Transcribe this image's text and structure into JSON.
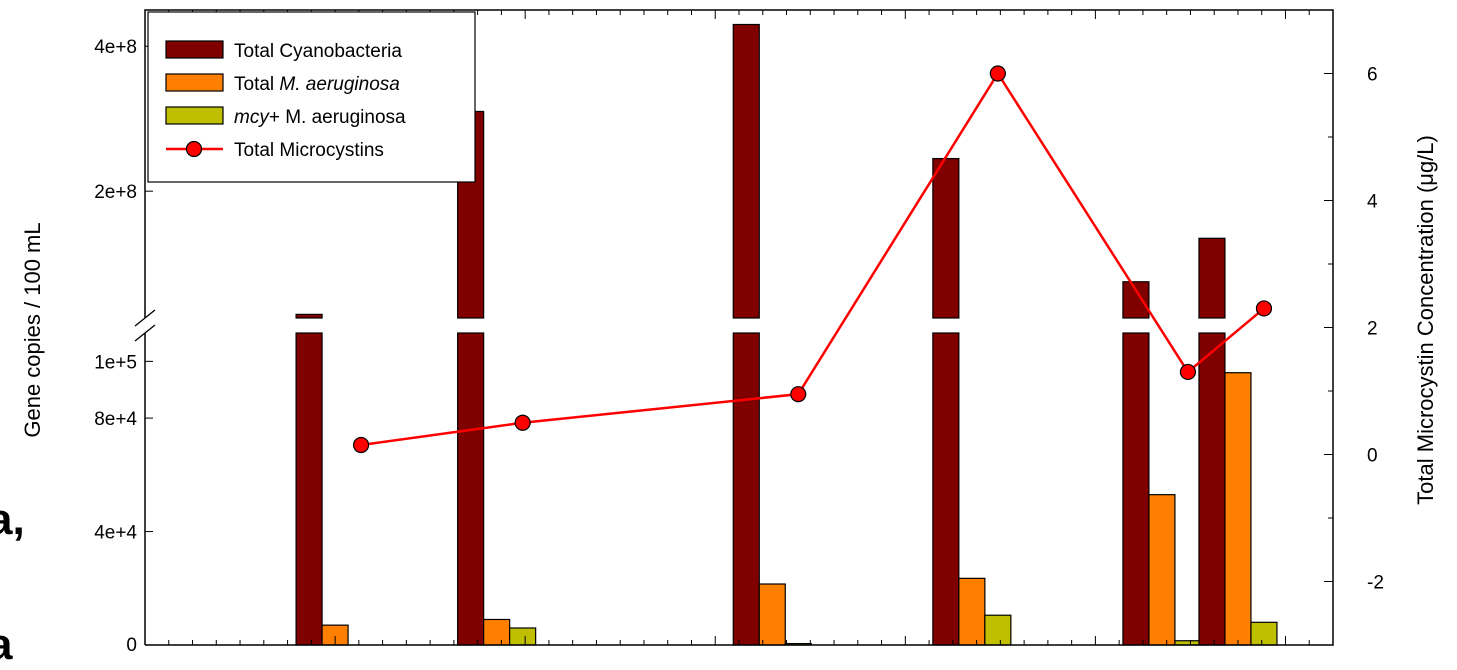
{
  "page_fragments": {
    "left_text_1": "a,",
    "left_text_2": "a"
  },
  "chart_data": {
    "type": "bar",
    "x": [
      0,
      1.7,
      4.6,
      6.7,
      8.7,
      9.5
    ],
    "xlim": [
      -2.0,
      10.5
    ],
    "left_axis": {
      "label": "Gene copies / 100 mL",
      "broken": true,
      "lower_ticks": [
        {
          "value": 0,
          "label": "0"
        },
        {
          "value": 40000,
          "label": "4e+4"
        },
        {
          "value": 80000,
          "label": "8e+4"
        },
        {
          "value": 100000,
          "label": "1e+5"
        }
      ],
      "upper_ticks": [
        {
          "value": 200000000,
          "label": "2e+8"
        },
        {
          "value": 400000000,
          "label": "4e+8"
        }
      ]
    },
    "right_axis": {
      "label": "Total Microcystin Concentration (μg/L)",
      "ylim": [
        -3.0,
        7.0
      ],
      "ticks": [
        {
          "value": -2,
          "label": "-2"
        },
        {
          "value": 0,
          "label": "0"
        },
        {
          "value": 2,
          "label": "2"
        },
        {
          "value": 4,
          "label": "4"
        },
        {
          "value": 6,
          "label": "6"
        }
      ]
    },
    "legend": {
      "placement": "top-left",
      "entries": [
        {
          "pre": "",
          "italic": "",
          "post": "Total Cyanobacteria",
          "color": "#800000",
          "kind": "bar"
        },
        {
          "pre": "Total ",
          "italic": "M. aeruginosa",
          "post": "",
          "color": "#ff8000",
          "kind": "bar"
        },
        {
          "pre": "",
          "italic": "mcy",
          "post": "+ M. aeruginosa",
          "color": "#bfbf00",
          "kind": "bar"
        },
        {
          "pre": "",
          "italic": "",
          "post": "Total Microcystins",
          "color": "#ff0000",
          "kind": "line"
        }
      ]
    },
    "series": [
      {
        "name": "Total Cyanobacteria",
        "color": "#800000",
        "values": [
          30000000,
          310000000,
          430000000,
          245000000,
          75000000,
          135000000
        ]
      },
      {
        "name": "Total M. aeruginosa",
        "color": "#ff8000",
        "values": [
          7000,
          9000,
          21500,
          23500,
          53000,
          96000
        ]
      },
      {
        "name": "mcy+ M. aeruginosa",
        "color": "#bfbf00",
        "values": [
          0,
          6000,
          500,
          10500,
          1500,
          8000
        ]
      },
      {
        "name": "Total Microcystins",
        "color": "#ff0000",
        "axis": "right",
        "values": [
          0.15,
          0.5,
          0.95,
          6.0,
          1.3,
          2.3
        ]
      }
    ]
  }
}
